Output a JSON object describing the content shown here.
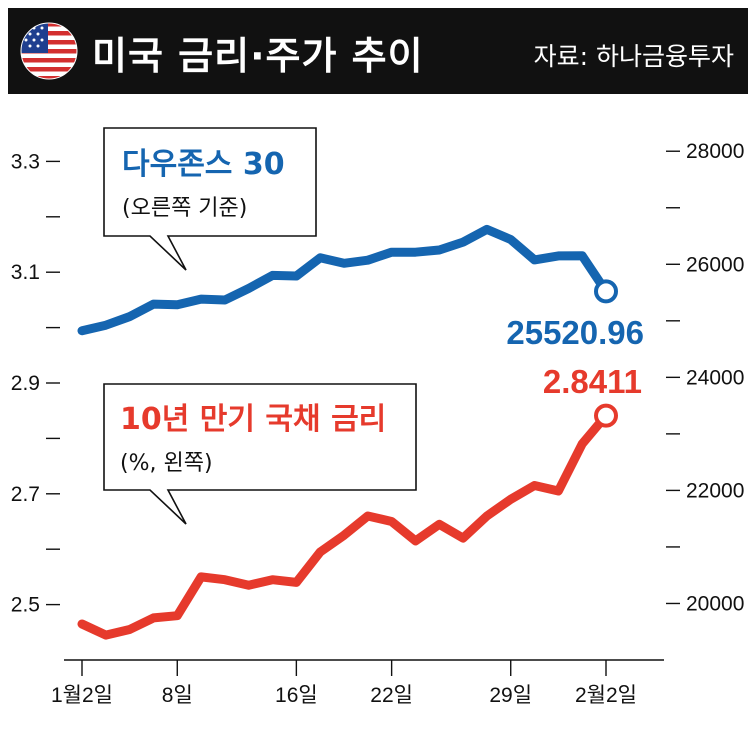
{
  "header": {
    "title": "미국 금리·주가 추이",
    "source": "자료: 하나금융투자",
    "flag_icon": "us-flag-icon"
  },
  "colors": {
    "dow": "#1565b0",
    "yield": "#e63a2c",
    "header_bg": "#111111"
  },
  "chart_data": {
    "type": "line",
    "x_tick_labels": [
      "1월2일",
      "8일",
      "16일",
      "22일",
      "29일",
      "2월2일"
    ],
    "left_axis": {
      "ylim": [
        2.4,
        3.4
      ],
      "tick_labels": [
        "3.3",
        "3.1",
        "2.9",
        "2.7",
        "2.5"
      ],
      "tick_values": [
        3.3,
        3.1,
        2.9,
        2.7,
        2.5
      ],
      "minor_tick_values": [
        3.2,
        3.0,
        2.8,
        2.6
      ]
    },
    "right_axis": {
      "ylim": [
        19000,
        28800
      ],
      "tick_labels": [
        "28000",
        "26000",
        "24000",
        "22000",
        "20000"
      ],
      "tick_values": [
        28000,
        26000,
        24000,
        22000,
        20000
      ],
      "minor_tick_values": [
        27000,
        25000,
        23000,
        21000
      ]
    },
    "series": [
      {
        "name": "다우존스 30",
        "note": "(오른쪽 기준)",
        "axis": "right",
        "color": "#1565b0",
        "end_label": "25520.96",
        "values": [
          24825,
          24922,
          25075,
          25295,
          25283,
          25385,
          25369,
          25574,
          25804,
          25792,
          26115,
          26017,
          26072,
          26214,
          26214,
          26252,
          26392,
          26617,
          26439,
          26077,
          26149,
          26150,
          25520.96
        ]
      },
      {
        "name": "10년 만기 국채 금리",
        "note": "(%, 왼쪽)",
        "axis": "left",
        "color": "#e63a2c",
        "end_label": "2.8411",
        "values": [
          2.465,
          2.445,
          2.455,
          2.476,
          2.48,
          2.55,
          2.545,
          2.535,
          2.545,
          2.54,
          2.595,
          2.625,
          2.66,
          2.65,
          2.615,
          2.645,
          2.62,
          2.66,
          2.69,
          2.715,
          2.705,
          2.79,
          2.8411
        ]
      }
    ]
  }
}
